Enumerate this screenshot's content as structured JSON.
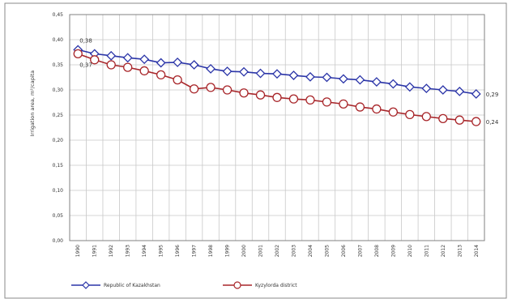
{
  "chart_data": {
    "type": "line",
    "title": "",
    "xlabel": "",
    "ylabel": "Irrigation area, m²/capita",
    "ylim": [
      0,
      0.45
    ],
    "yticks": [
      "0,00",
      "0,05",
      "0,10",
      "0,15",
      "0,20",
      "0,25",
      "0,30",
      "0,35",
      "0,40",
      "0,45"
    ],
    "x": [
      "1990",
      "1991",
      "1992",
      "1993",
      "1994",
      "1995",
      "1996",
      "1997",
      "1998",
      "1999",
      "2000",
      "2001",
      "2002",
      "2003",
      "2004",
      "2005",
      "2006",
      "2007",
      "2008",
      "2009",
      "2010",
      "2011",
      "2012",
      "2013",
      "2014"
    ],
    "grid": true,
    "legend_position": "bottom",
    "series": [
      {
        "name": "Republic of Kazakhstan",
        "color": "#2b35a8",
        "marker": "diamond",
        "values": [
          0.38,
          0.372,
          0.368,
          0.364,
          0.361,
          0.354,
          0.355,
          0.35,
          0.342,
          0.337,
          0.336,
          0.333,
          0.332,
          0.329,
          0.326,
          0.325,
          0.322,
          0.32,
          0.316,
          0.312,
          0.306,
          0.303,
          0.3,
          0.297,
          0.292
        ]
      },
      {
        "name": "Kyzylorda district",
        "color": "#a8262a",
        "marker": "circle",
        "values": [
          0.372,
          0.36,
          0.35,
          0.345,
          0.338,
          0.33,
          0.32,
          0.302,
          0.305,
          0.3,
          0.294,
          0.29,
          0.285,
          0.282,
          0.28,
          0.276,
          0.272,
          0.266,
          0.262,
          0.256,
          0.251,
          0.247,
          0.243,
          0.24,
          0.237
        ]
      }
    ],
    "annotations": [
      {
        "text": "0,38",
        "series": 0,
        "point": "first"
      },
      {
        "text": "0,37",
        "series": 1,
        "point": "first"
      },
      {
        "text": "0,29",
        "series": 0,
        "point": "last"
      },
      {
        "text": "0,24",
        "series": 1,
        "point": "last"
      }
    ]
  }
}
